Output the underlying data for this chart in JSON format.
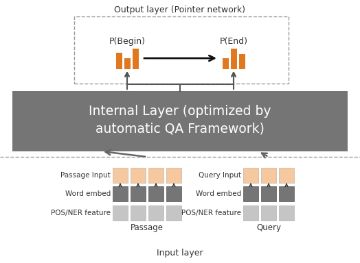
{
  "title": "Output layer (Pointer network)",
  "footer": "Input layer",
  "internal_box_text": "Internal Layer (optimized by\nautomatic QA Framework)",
  "internal_box_color": "#757575",
  "internal_box_text_color": "#ffffff",
  "dashed_box_color": "#999999",
  "orange_bar_color": "#e07820",
  "passage_input_color": "#f5c8a0",
  "word_embed_color": "#757575",
  "pos_ner_color": "#c5c5c5",
  "p_begin_label": "P(Begin)",
  "p_end_label": "P(End)",
  "passage_label": "Passage",
  "query_label": "Query",
  "passage_input_label": "Passage Input",
  "word_embed_label": "Word embed",
  "pos_ner_label": "POS/NER feature",
  "query_input_label": "Query Input",
  "word_embed_label2": "Word embed",
  "pos_ner_label2": "POS/NER feature",
  "bg_color": "#ffffff",
  "text_color": "#333333"
}
